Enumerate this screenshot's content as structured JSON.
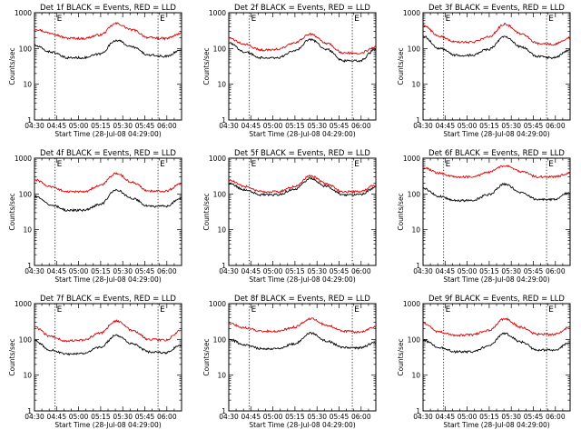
{
  "chart_data": [
    {
      "type": "line",
      "title": "Det 1f BLACK = Events, RED = LLD",
      "xlabel": "Start Time (28-Jul-08 04:29:00)",
      "ylabel": "Counts/sec",
      "yscale": "log",
      "ylim": [
        1,
        1000
      ],
      "xlim": [
        "04:30",
        "06:10"
      ],
      "x_ticks": [
        "04:30",
        "04:45",
        "05:00",
        "05:15",
        "05:30",
        "05:45",
        "06:00"
      ],
      "y_ticks": [
        "1",
        "10",
        "100",
        "1000"
      ],
      "markers": [
        {
          "time": "04:44",
          "label": "E"
        },
        {
          "time": "05:54",
          "label": "E"
        }
      ],
      "series": [
        {
          "color": "#dd0000",
          "values": [
            350,
            270,
            195,
            190,
            240,
            500,
            330,
            200,
            190,
            260
          ]
        },
        {
          "color": "#000000",
          "values": [
            120,
            80,
            55,
            55,
            70,
            170,
            110,
            65,
            60,
            90
          ]
        }
      ]
    },
    {
      "type": "line",
      "title": "Det 2f BLACK = Events, RED = LLD",
      "xlabel": "Start Time (28-Jul-08 04:29:00)",
      "ylabel": "Counts/sec",
      "yscale": "log",
      "ylim": [
        1,
        1000
      ],
      "xlim": [
        "04:30",
        "06:10"
      ],
      "x_ticks": [
        "04:30",
        "04:45",
        "05:00",
        "05:15",
        "05:30",
        "05:45",
        "06:00"
      ],
      "y_ticks": [
        "1",
        "10",
        "100",
        "1000"
      ],
      "markers": [
        {
          "time": "04:44",
          "label": "E"
        },
        {
          "time": "05:54",
          "label": "E"
        }
      ],
      "series": [
        {
          "color": "#dd0000",
          "values": [
            190,
            130,
            90,
            95,
            140,
            250,
            140,
            75,
            75,
            110
          ]
        },
        {
          "color": "#000000",
          "values": [
            140,
            80,
            55,
            55,
            85,
            180,
            95,
            45,
            45,
            95
          ]
        }
      ]
    },
    {
      "type": "line",
      "title": "Det 3f BLACK = Events, RED = LLD",
      "xlabel": "Start Time (28-Jul-08 04:29:00)",
      "ylabel": "Counts/sec",
      "yscale": "log",
      "ylim": [
        1,
        1000
      ],
      "xlim": [
        "04:30",
        "06:10"
      ],
      "x_ticks": [
        "04:30",
        "04:45",
        "05:00",
        "05:15",
        "05:30",
        "05:45",
        "06:00"
      ],
      "y_ticks": [
        "1",
        "10",
        "100",
        "1000"
      ],
      "markers": [
        {
          "time": "04:44",
          "label": "E"
        },
        {
          "time": "05:54",
          "label": "E"
        }
      ],
      "series": [
        {
          "color": "#dd0000",
          "values": [
            450,
            220,
            150,
            150,
            210,
            480,
            260,
            140,
            130,
            200
          ]
        },
        {
          "color": "#000000",
          "values": [
            220,
            100,
            65,
            65,
            95,
            210,
            110,
            60,
            55,
            90
          ]
        }
      ]
    },
    {
      "type": "line",
      "title": "Det 4f BLACK = Events, RED = LLD",
      "xlabel": "Start Time (28-Jul-08 04:29:00)",
      "ylabel": "Counts/sec",
      "yscale": "log",
      "ylim": [
        1,
        1000
      ],
      "xlim": [
        "04:30",
        "06:10"
      ],
      "x_ticks": [
        "04:30",
        "04:45",
        "05:00",
        "05:15",
        "05:30",
        "05:45",
        "06:00"
      ],
      "y_ticks": [
        "1",
        "10",
        "100",
        "1000"
      ],
      "markers": [
        {
          "time": "04:44",
          "label": "E"
        },
        {
          "time": "05:54",
          "label": "E"
        }
      ],
      "series": [
        {
          "color": "#dd0000",
          "values": [
            250,
            160,
            115,
            115,
            170,
            380,
            210,
            120,
            120,
            190
          ]
        },
        {
          "color": "#000000",
          "values": [
            85,
            50,
            35,
            35,
            50,
            130,
            75,
            45,
            45,
            75
          ]
        }
      ]
    },
    {
      "type": "line",
      "title": "Det 5f BLACK = Events, RED = LLD",
      "xlabel": "Start Time (28-Jul-08 04:29:00)",
      "ylabel": "Counts/sec",
      "yscale": "log",
      "ylim": [
        1,
        1000
      ],
      "xlim": [
        "04:30",
        "06:10"
      ],
      "x_ticks": [
        "04:30",
        "04:45",
        "05:00",
        "05:15",
        "05:30",
        "05:45",
        "06:00"
      ],
      "y_ticks": [
        "1",
        "10",
        "100",
        "1000"
      ],
      "markers": [
        {
          "time": "04:44",
          "label": "E"
        },
        {
          "time": "05:54",
          "label": "E"
        }
      ],
      "series": [
        {
          "color": "#dd0000",
          "values": [
            240,
            160,
            115,
            115,
            160,
            320,
            190,
            115,
            115,
            180
          ]
        },
        {
          "color": "#000000",
          "values": [
            200,
            130,
            95,
            95,
            135,
            270,
            160,
            95,
            95,
            150
          ]
        }
      ]
    },
    {
      "type": "line",
      "title": "Det 6f BLACK = Events, RED = LLD",
      "xlabel": "Start Time (28-Jul-08 04:29:00)",
      "ylabel": "Counts/sec",
      "yscale": "log",
      "ylim": [
        1,
        1000
      ],
      "xlim": [
        "04:30",
        "06:10"
      ],
      "x_ticks": [
        "04:30",
        "04:45",
        "05:00",
        "05:15",
        "05:30",
        "05:45",
        "06:00"
      ],
      "y_ticks": [
        "1",
        "10",
        "100",
        "1000"
      ],
      "markers": [
        {
          "time": "04:44",
          "label": "E"
        },
        {
          "time": "05:54",
          "label": "E"
        }
      ],
      "series": [
        {
          "color": "#dd0000",
          "values": [
            550,
            380,
            300,
            300,
            400,
            620,
            420,
            300,
            300,
            380
          ]
        },
        {
          "color": "#000000",
          "values": [
            140,
            85,
            65,
            65,
            95,
            190,
            110,
            70,
            70,
            110
          ]
        }
      ]
    },
    {
      "type": "line",
      "title": "Det 7f BLACK = Events, RED = LLD",
      "xlabel": "Start Time (28-Jul-08 04:29:00)",
      "ylabel": "Counts/sec",
      "yscale": "log",
      "ylim": [
        1,
        1000
      ],
      "xlim": [
        "04:30",
        "06:10"
      ],
      "x_ticks": [
        "04:30",
        "04:45",
        "05:00",
        "05:15",
        "05:30",
        "05:45",
        "06:00"
      ],
      "y_ticks": [
        "1",
        "10",
        "100",
        "1000"
      ],
      "markers": [
        {
          "time": "04:44",
          "label": "E"
        },
        {
          "time": "05:54",
          "label": "E"
        }
      ],
      "series": [
        {
          "color": "#dd0000",
          "values": [
            220,
            120,
            90,
            95,
            150,
            330,
            180,
            100,
            95,
            180
          ]
        },
        {
          "color": "#000000",
          "values": [
            90,
            50,
            38,
            40,
            60,
            130,
            75,
            45,
            42,
            70
          ]
        }
      ]
    },
    {
      "type": "line",
      "title": "Det 8f BLACK = Events, RED = LLD",
      "xlabel": "Start Time (28-Jul-08 04:29:00)",
      "ylabel": "Counts/sec",
      "yscale": "log",
      "ylim": [
        1,
        1000
      ],
      "xlim": [
        "04:30",
        "06:10"
      ],
      "x_ticks": [
        "04:30",
        "04:45",
        "05:00",
        "05:15",
        "05:30",
        "05:45",
        "06:00"
      ],
      "y_ticks": [
        "1",
        "10",
        "100",
        "1000"
      ],
      "markers": [
        {
          "time": "04:44",
          "label": "E"
        },
        {
          "time": "05:54",
          "label": "E"
        }
      ],
      "series": [
        {
          "color": "#dd0000",
          "values": [
            280,
            210,
            170,
            170,
            220,
            380,
            250,
            170,
            160,
            220
          ]
        },
        {
          "color": "#000000",
          "values": [
            100,
            70,
            55,
            55,
            75,
            150,
            90,
            60,
            58,
            80
          ]
        }
      ]
    },
    {
      "type": "line",
      "title": "Det 9f BLACK = Events, RED = LLD",
      "xlabel": "Start Time (28-Jul-08 04:29:00)",
      "ylabel": "Counts/sec",
      "yscale": "log",
      "ylim": [
        1,
        1000
      ],
      "xlim": [
        "04:30",
        "06:10"
      ],
      "x_ticks": [
        "04:30",
        "04:45",
        "05:00",
        "05:15",
        "05:30",
        "05:45",
        "06:00"
      ],
      "y_ticks": [
        "1",
        "10",
        "100",
        "1000"
      ],
      "markers": [
        {
          "time": "04:44",
          "label": "E"
        },
        {
          "time": "05:54",
          "label": "E"
        }
      ],
      "series": [
        {
          "color": "#dd0000",
          "values": [
            280,
            160,
            130,
            135,
            180,
            380,
            220,
            140,
            135,
            220
          ]
        },
        {
          "color": "#000000",
          "values": [
            95,
            60,
            45,
            45,
            65,
            145,
            85,
            50,
            50,
            80
          ]
        }
      ]
    }
  ]
}
